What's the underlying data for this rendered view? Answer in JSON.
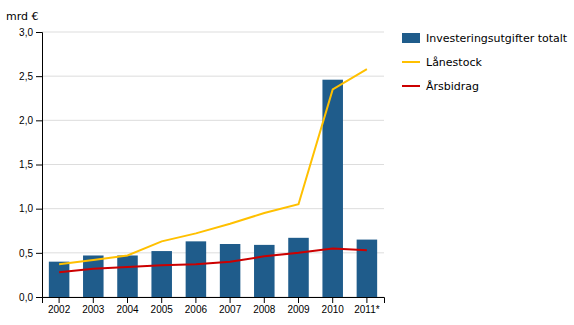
{
  "chart_data": {
    "type": "bar",
    "ylabel": "mrd €",
    "categories": [
      "2002",
      "2003",
      "2004",
      "2005",
      "2006",
      "2007",
      "2008",
      "2009",
      "2010",
      "2011*"
    ],
    "series": [
      {
        "name": "Investeringsutgifter totalt",
        "type": "bar",
        "color": "#1f5c8b",
        "values": [
          0.4,
          0.47,
          0.47,
          0.52,
          0.63,
          0.6,
          0.59,
          0.67,
          2.46,
          0.65
        ]
      },
      {
        "name": "Lånestock",
        "type": "line",
        "color": "#ffc000",
        "values": [
          0.37,
          0.42,
          0.47,
          0.63,
          0.72,
          0.83,
          0.95,
          1.05,
          2.35,
          2.58
        ]
      },
      {
        "name": "Årsbidrag",
        "type": "line",
        "color": "#cc0000",
        "values": [
          0.28,
          0.32,
          0.34,
          0.36,
          0.37,
          0.4,
          0.46,
          0.5,
          0.55,
          0.53
        ]
      }
    ],
    "ylim": [
      0,
      3.0
    ],
    "yticks": [
      {
        "value": 0.0,
        "label": "0,0"
      },
      {
        "value": 0.5,
        "label": "0,5"
      },
      {
        "value": 1.0,
        "label": "1,0"
      },
      {
        "value": 1.5,
        "label": "1,5"
      },
      {
        "value": 2.0,
        "label": "2,0"
      },
      {
        "value": 2.5,
        "label": "2,5"
      },
      {
        "value": 3.0,
        "label": "3,0"
      }
    ],
    "grid": true,
    "legend": "right"
  }
}
